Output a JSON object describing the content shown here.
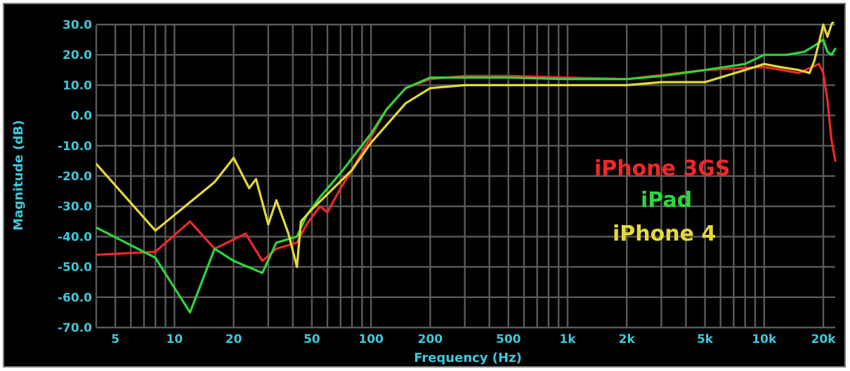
{
  "chart_data": {
    "type": "line",
    "xlabel": "Frequency (Hz)",
    "ylabel": "Magnitude (dB)",
    "xscale": "log",
    "xlim": [
      4,
      23000
    ],
    "ylim": [
      -70,
      30
    ],
    "grid": true,
    "background": "#000000",
    "grid_color": "#5a5a5a",
    "text_color": "#3fc8d8",
    "x_ticks": [
      {
        "value": 5,
        "label": "5"
      },
      {
        "value": 10,
        "label": "10"
      },
      {
        "value": 20,
        "label": "20"
      },
      {
        "value": 50,
        "label": "50"
      },
      {
        "value": 100,
        "label": "100"
      },
      {
        "value": 200,
        "label": "200"
      },
      {
        "value": 500,
        "label": "500"
      },
      {
        "value": 1000,
        "label": "1k"
      },
      {
        "value": 2000,
        "label": "2k"
      },
      {
        "value": 5000,
        "label": "5k"
      },
      {
        "value": 10000,
        "label": "10k"
      },
      {
        "value": 20000,
        "label": "20k"
      }
    ],
    "y_ticks": [
      {
        "value": 30,
        "label": "30.0"
      },
      {
        "value": 20,
        "label": "20.0"
      },
      {
        "value": 10,
        "label": "10.0"
      },
      {
        "value": 0,
        "label": "0.0"
      },
      {
        "value": -10,
        "label": "-10.0"
      },
      {
        "value": -20,
        "label": "-20.0"
      },
      {
        "value": -30,
        "label": "-30.0"
      },
      {
        "value": -40,
        "label": "-40.0"
      },
      {
        "value": -50,
        "label": "-50.0"
      },
      {
        "value": -60,
        "label": "-60.0"
      },
      {
        "value": -70,
        "label": "-70.0"
      }
    ],
    "legend_placement": "right-center",
    "series": [
      {
        "name": "iPhone 3GS",
        "color": "#f0282a",
        "points": [
          [
            4,
            -46
          ],
          [
            8,
            -45
          ],
          [
            12,
            -35
          ],
          [
            16,
            -44
          ],
          [
            23,
            -39
          ],
          [
            28,
            -48
          ],
          [
            33,
            -44
          ],
          [
            42,
            -42
          ],
          [
            47,
            -36
          ],
          [
            55,
            -30
          ],
          [
            60,
            -32
          ],
          [
            70,
            -24
          ],
          [
            80,
            -18
          ],
          [
            100,
            -7
          ],
          [
            120,
            2
          ],
          [
            150,
            9
          ],
          [
            200,
            12
          ],
          [
            300,
            13
          ],
          [
            500,
            13
          ],
          [
            1000,
            12.5
          ],
          [
            2000,
            12
          ],
          [
            5000,
            15
          ],
          [
            10000,
            16
          ],
          [
            15000,
            14
          ],
          [
            19000,
            17
          ],
          [
            20000,
            14
          ],
          [
            21000,
            5
          ],
          [
            22000,
            -8
          ],
          [
            23000,
            -15
          ]
        ]
      },
      {
        "name": "iPad",
        "color": "#2fd63c",
        "points": [
          [
            4,
            -37
          ],
          [
            8,
            -47
          ],
          [
            12,
            -65
          ],
          [
            16,
            -44
          ],
          [
            20,
            -48
          ],
          [
            28,
            -52
          ],
          [
            33,
            -42
          ],
          [
            42,
            -40
          ],
          [
            47,
            -33
          ],
          [
            55,
            -27
          ],
          [
            70,
            -19
          ],
          [
            100,
            -6
          ],
          [
            120,
            2
          ],
          [
            150,
            9
          ],
          [
            200,
            12.5
          ],
          [
            300,
            12.5
          ],
          [
            500,
            12.5
          ],
          [
            1000,
            12
          ],
          [
            2000,
            12
          ],
          [
            3000,
            13
          ],
          [
            5000,
            15
          ],
          [
            8000,
            17
          ],
          [
            10000,
            20
          ],
          [
            13000,
            20
          ],
          [
            16000,
            21
          ],
          [
            18000,
            23
          ],
          [
            20000,
            25
          ],
          [
            21000,
            21
          ],
          [
            22000,
            20
          ],
          [
            23000,
            22
          ]
        ]
      },
      {
        "name": "iPhone 4",
        "color": "#e5d93a",
        "points": [
          [
            4,
            -16
          ],
          [
            8,
            -38
          ],
          [
            16,
            -22
          ],
          [
            20,
            -14
          ],
          [
            24,
            -24
          ],
          [
            26,
            -21
          ],
          [
            30,
            -36
          ],
          [
            33,
            -28
          ],
          [
            38,
            -39
          ],
          [
            42,
            -50
          ],
          [
            44,
            -35
          ],
          [
            50,
            -31
          ],
          [
            60,
            -26
          ],
          [
            80,
            -18
          ],
          [
            100,
            -9
          ],
          [
            150,
            4
          ],
          [
            200,
            9
          ],
          [
            300,
            10
          ],
          [
            500,
            10
          ],
          [
            1000,
            10
          ],
          [
            2000,
            10
          ],
          [
            3000,
            11
          ],
          [
            5000,
            11
          ],
          [
            8000,
            15
          ],
          [
            10000,
            17
          ],
          [
            12000,
            16
          ],
          [
            15000,
            15
          ],
          [
            17000,
            14
          ],
          [
            18000,
            18
          ],
          [
            19000,
            24
          ],
          [
            20000,
            30
          ],
          [
            21000,
            26
          ],
          [
            22000,
            30
          ],
          [
            23000,
            32
          ]
        ]
      }
    ]
  }
}
